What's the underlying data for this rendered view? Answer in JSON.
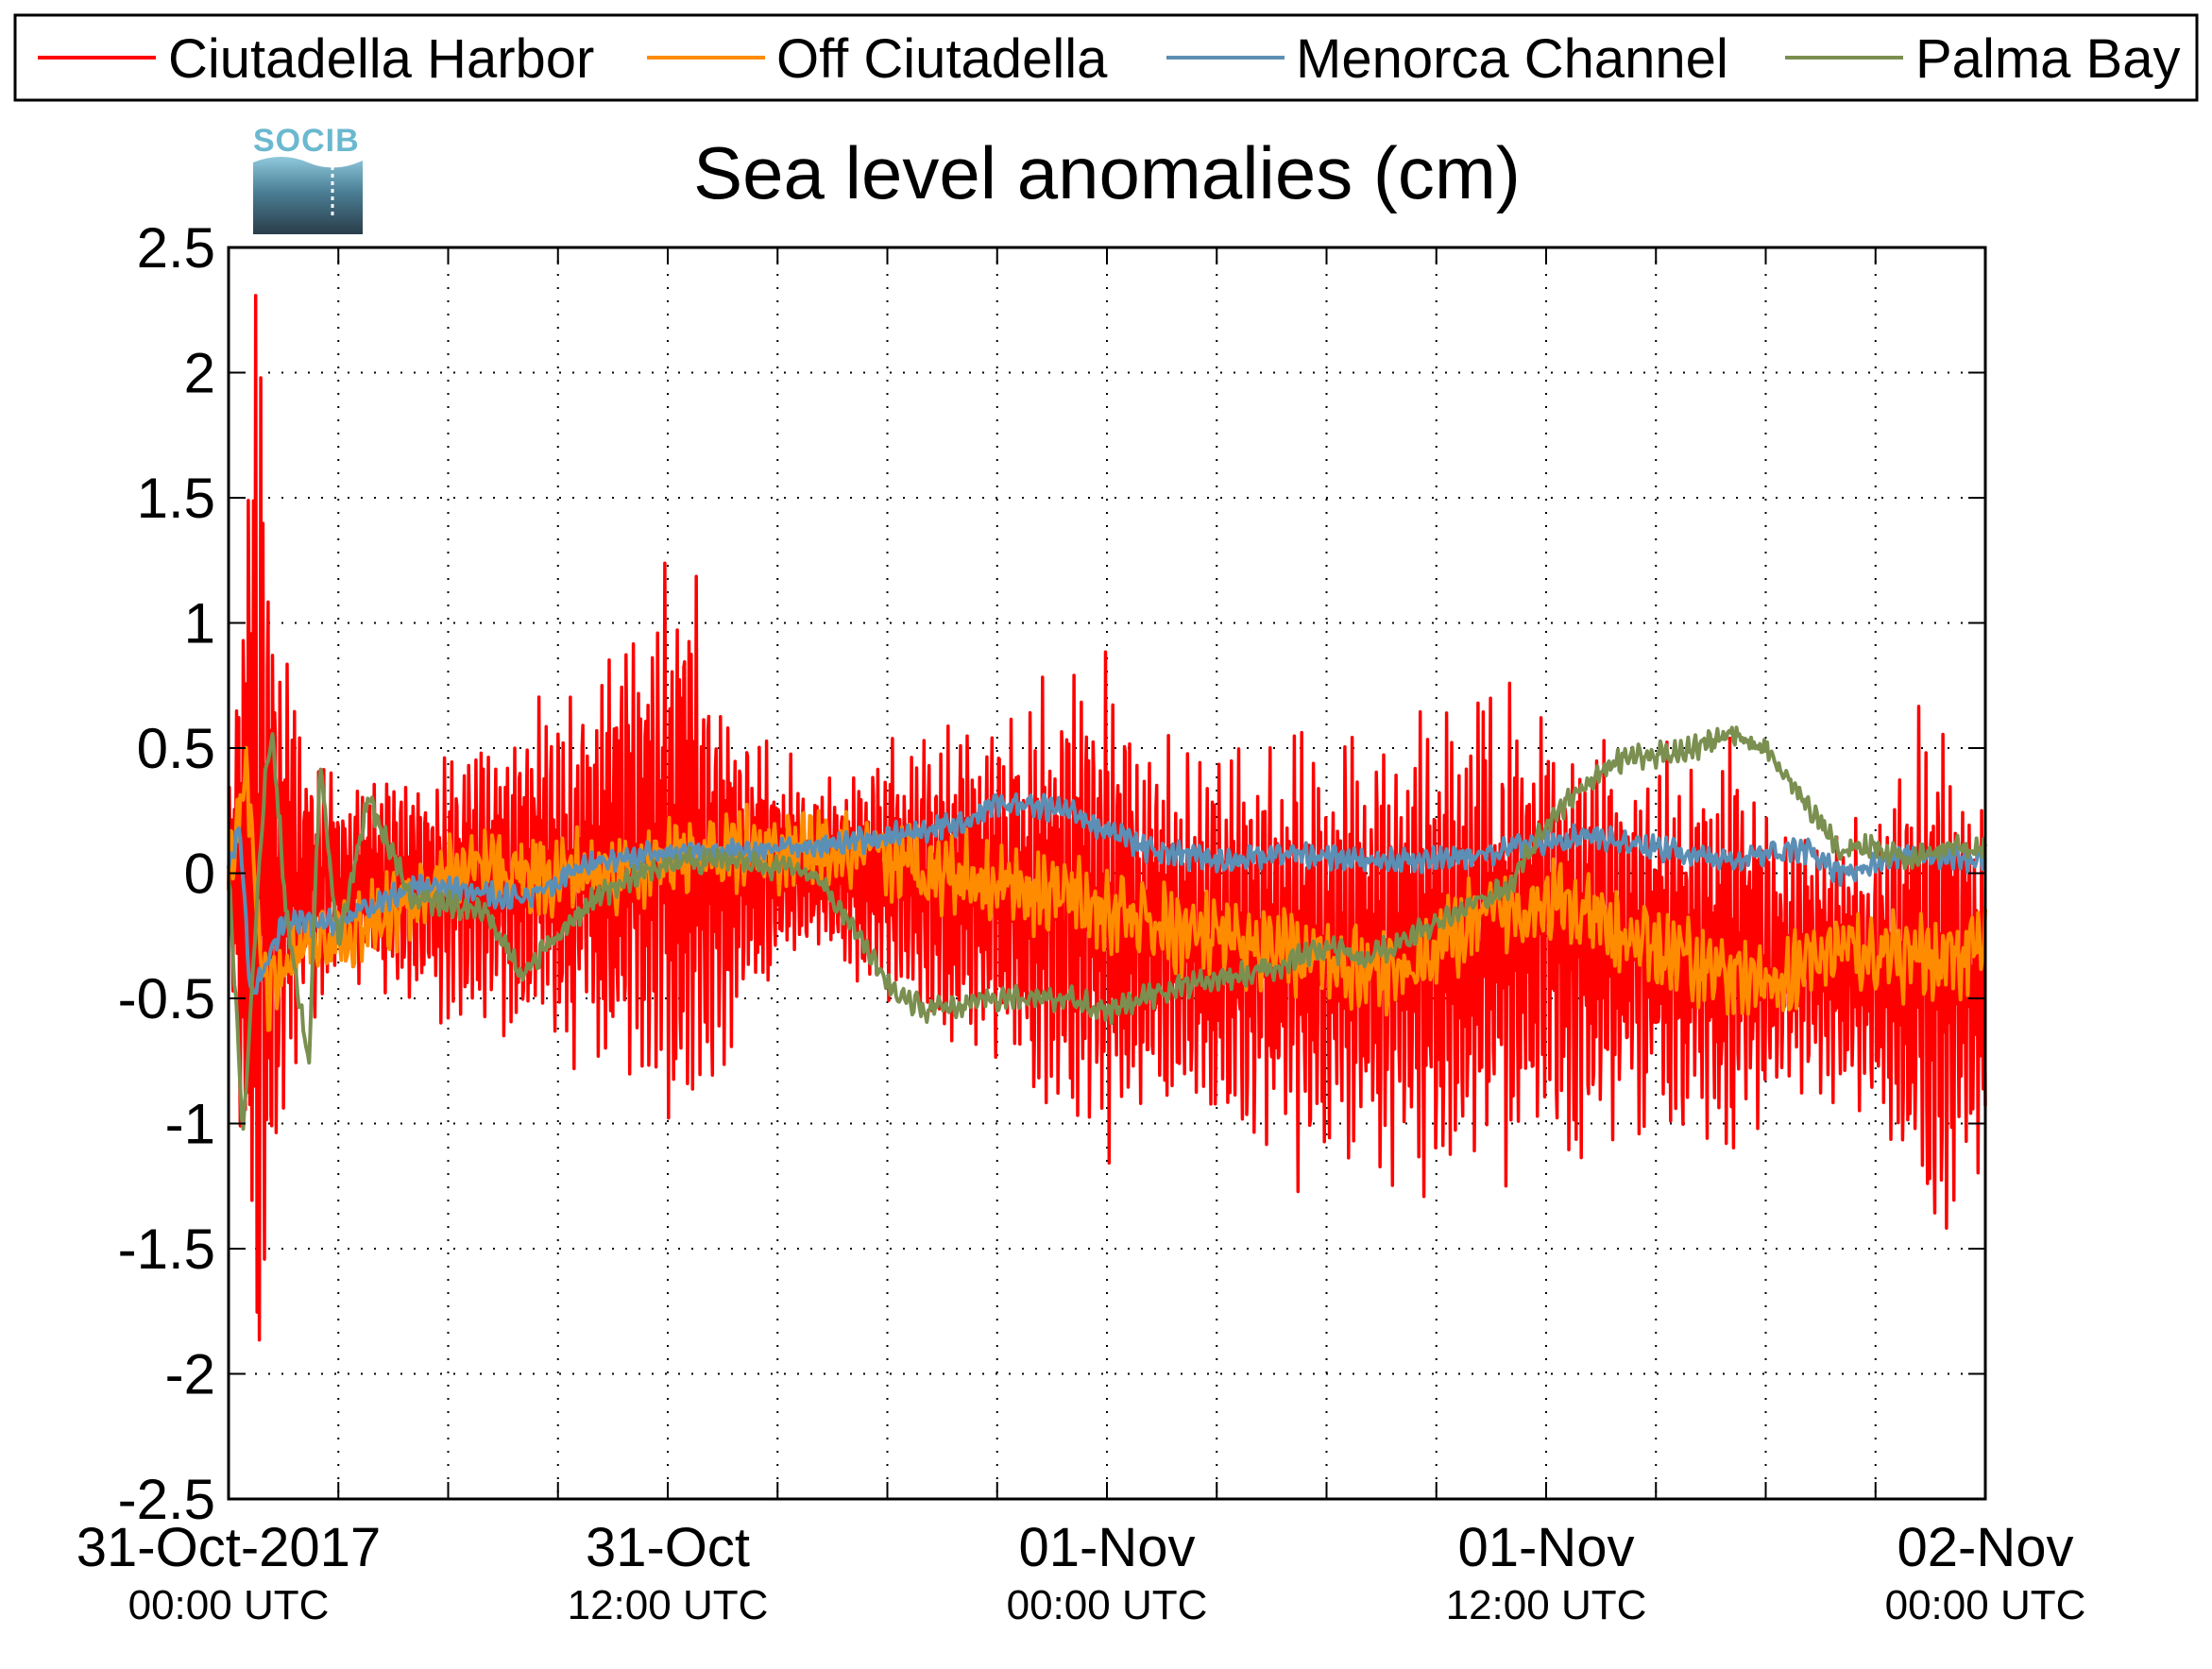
{
  "chart_data": {
    "type": "line",
    "title": "Sea level anomalies (cm)",
    "logo_text": "SOCIB",
    "xlabel": "",
    "ylabel": "",
    "ylim": [
      -2.5,
      2.5
    ],
    "yticks": [
      "2.5",
      "2",
      "1.5",
      "1",
      "0.5",
      "0",
      "-0.5",
      "-1",
      "-1.5",
      "-2",
      "-2.5"
    ],
    "xlim_hours": [
      0,
      48
    ],
    "xticks": [
      {
        "main": "31-Oct-2017",
        "sub": "00:00 UTC"
      },
      {
        "main": "31-Oct",
        "sub": "12:00 UTC"
      },
      {
        "main": "01-Nov",
        "sub": "00:00 UTC"
      },
      {
        "main": "01-Nov",
        "sub": "12:00 UTC"
      },
      {
        "main": "02-Nov",
        "sub": "00:00 UTC"
      }
    ],
    "grid": true,
    "legend_position": "top",
    "series": [
      {
        "name": "Ciutadella Harbor",
        "color": "#ff0000",
        "envelope": [
          [
            0,
            0.3
          ],
          [
            0.7,
            2.2
          ],
          [
            1.2,
            1.4
          ],
          [
            2,
            0.6
          ],
          [
            3,
            0.35
          ],
          [
            6,
            0.5
          ],
          [
            9,
            0.65
          ],
          [
            11,
            0.9
          ],
          [
            12.5,
            1.1
          ],
          [
            14,
            0.6
          ],
          [
            16,
            0.3
          ],
          [
            18,
            0.5
          ],
          [
            21,
            0.7
          ],
          [
            24,
            0.95
          ],
          [
            26,
            0.7
          ],
          [
            29,
            0.8
          ],
          [
            32,
            0.85
          ],
          [
            34,
            0.95
          ],
          [
            36,
            0.9
          ],
          [
            38,
            0.7
          ],
          [
            41,
            0.75
          ],
          [
            43,
            0.5
          ],
          [
            45,
            0.55
          ],
          [
            46.5,
            1.05
          ],
          [
            48,
            0.7
          ]
        ],
        "baseline": [
          [
            0,
            0
          ],
          [
            6,
            -0.05
          ],
          [
            12,
            0.05
          ],
          [
            18,
            0
          ],
          [
            24,
            -0.2
          ],
          [
            30,
            -0.35
          ],
          [
            36,
            -0.25
          ],
          [
            42,
            -0.35
          ],
          [
            48,
            -0.45
          ]
        ]
      },
      {
        "name": "Off Ciutadella",
        "color": "#ff8c00",
        "points": [
          [
            0,
            0
          ],
          [
            0.5,
            0.4
          ],
          [
            1,
            -0.5
          ],
          [
            2,
            -0.3
          ],
          [
            4,
            -0.2
          ],
          [
            6,
            0
          ],
          [
            10,
            0
          ],
          [
            12,
            0.05
          ],
          [
            15,
            0.1
          ],
          [
            18,
            0.05
          ],
          [
            20,
            0
          ],
          [
            23,
            -0.1
          ],
          [
            25,
            -0.2
          ],
          [
            28,
            -0.3
          ],
          [
            30,
            -0.35
          ],
          [
            32,
            -0.4
          ],
          [
            34,
            -0.2
          ],
          [
            36,
            -0.1
          ],
          [
            38,
            -0.25
          ],
          [
            40,
            -0.35
          ],
          [
            42,
            -0.45
          ],
          [
            44,
            -0.3
          ],
          [
            46,
            -0.35
          ],
          [
            48,
            -0.3
          ]
        ]
      },
      {
        "name": "Menorca Channel",
        "color": "#5b8fb5",
        "points": [
          [
            0,
            0
          ],
          [
            0.3,
            0.2
          ],
          [
            0.6,
            -0.5
          ],
          [
            1.5,
            -0.2
          ],
          [
            3,
            -0.2
          ],
          [
            5,
            -0.05
          ],
          [
            8,
            -0.1
          ],
          [
            10,
            0.05
          ],
          [
            12,
            0.08
          ],
          [
            14,
            0.1
          ],
          [
            16,
            0.1
          ],
          [
            18,
            0.15
          ],
          [
            20,
            0.2
          ],
          [
            21,
            0.28
          ],
          [
            23,
            0.25
          ],
          [
            25,
            0.1
          ],
          [
            27,
            0.05
          ],
          [
            29,
            0.08
          ],
          [
            31,
            0.05
          ],
          [
            33,
            0.05
          ],
          [
            35,
            0.1
          ],
          [
            37,
            0.15
          ],
          [
            39,
            0.1
          ],
          [
            41,
            0.05
          ],
          [
            43,
            0.1
          ],
          [
            44,
            0.0
          ],
          [
            46,
            0.08
          ],
          [
            48,
            0.05
          ]
        ]
      },
      {
        "name": "Palma Bay",
        "color": "#7a8f50",
        "points": [
          [
            0,
            0
          ],
          [
            0.4,
            -1.05
          ],
          [
            1,
            0.4
          ],
          [
            1.2,
            0.55
          ],
          [
            1.6,
            -0.2
          ],
          [
            2.2,
            -0.75
          ],
          [
            2.5,
            0.45
          ],
          [
            3,
            -0.3
          ],
          [
            3.8,
            0.3
          ],
          [
            5,
            -0.1
          ],
          [
            7,
            -0.15
          ],
          [
            8,
            -0.4
          ],
          [
            10,
            -0.1
          ],
          [
            12,
            0.05
          ],
          [
            14,
            0.05
          ],
          [
            16,
            0.0
          ],
          [
            17,
            -0.2
          ],
          [
            18,
            -0.45
          ],
          [
            19,
            -0.55
          ],
          [
            21,
            -0.5
          ],
          [
            23,
            -0.5
          ],
          [
            24,
            -0.55
          ],
          [
            26,
            -0.45
          ],
          [
            28,
            -0.4
          ],
          [
            30,
            -0.3
          ],
          [
            31,
            -0.35
          ],
          [
            33,
            -0.2
          ],
          [
            35,
            -0.05
          ],
          [
            36,
            0.2
          ],
          [
            37,
            0.35
          ],
          [
            38,
            0.45
          ],
          [
            40,
            0.5
          ],
          [
            41,
            0.55
          ],
          [
            42,
            0.5
          ],
          [
            43,
            0.3
          ],
          [
            44,
            0.1
          ],
          [
            45,
            0.1
          ],
          [
            46,
            0.05
          ],
          [
            47,
            0.1
          ],
          [
            48,
            0.1
          ]
        ]
      }
    ]
  }
}
